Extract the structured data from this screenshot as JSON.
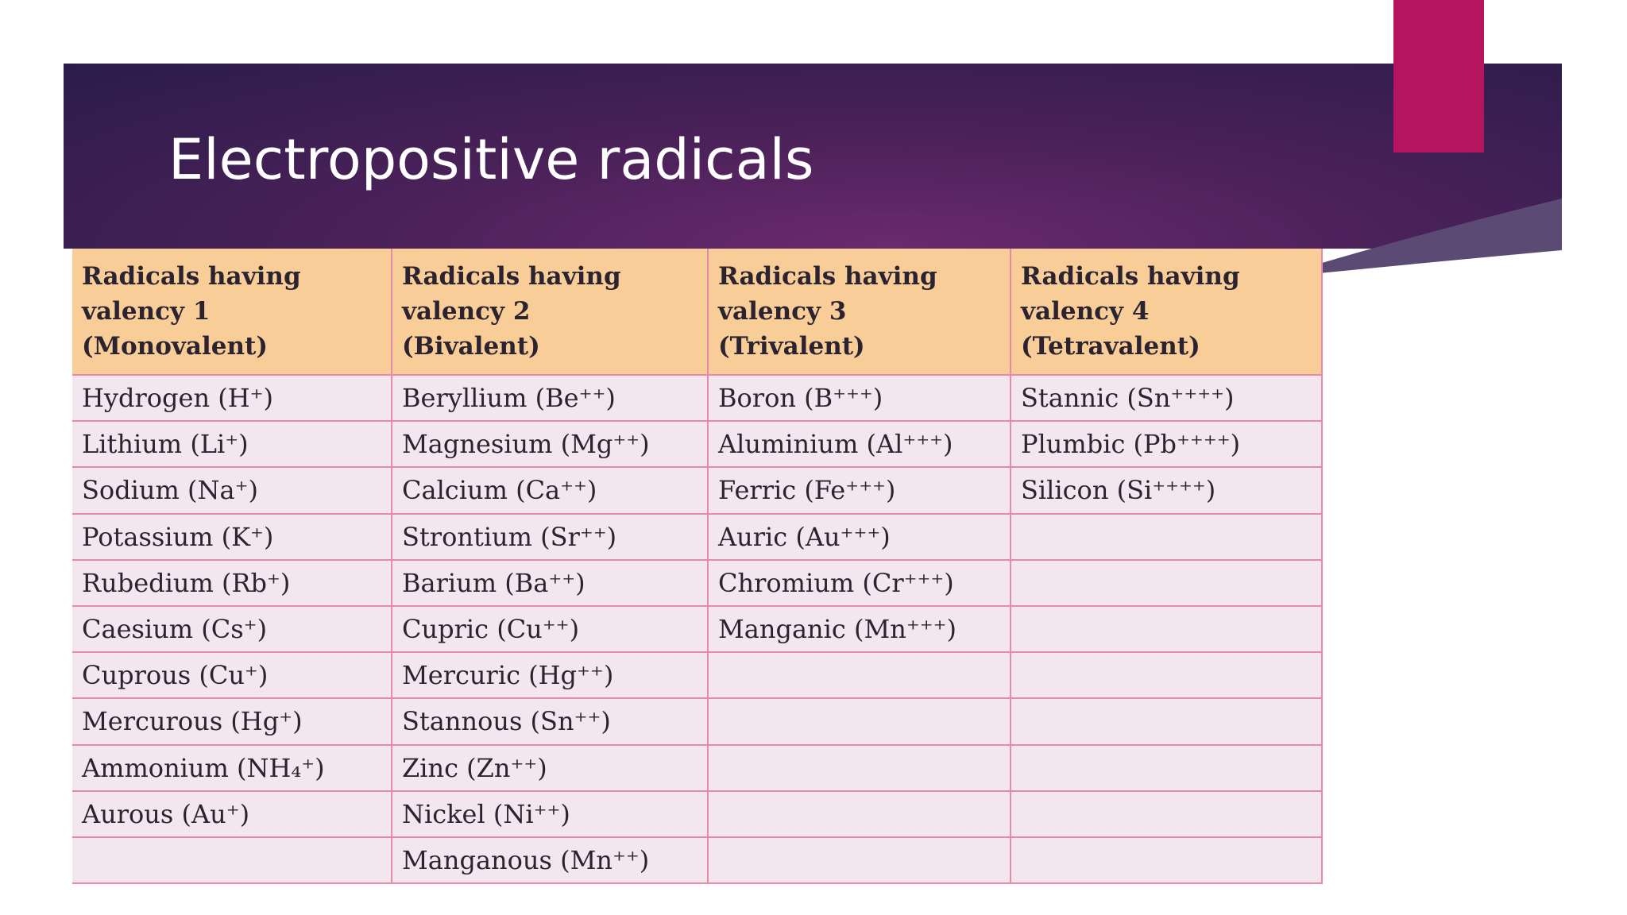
{
  "slide": {
    "title": "Electropositive radicals"
  },
  "table": {
    "columns": [
      {
        "header": [
          "Radicals having",
          "valency 1",
          "(Monovalent)"
        ],
        "items": [
          "Hydrogen (H⁺)",
          "Lithium (Li⁺)",
          "Sodium (Na⁺)",
          "Potassium (K⁺)",
          "Rubedium (Rb⁺)",
          "Caesium (Cs⁺)",
          "Cuprous (Cu⁺)",
          "Mercurous (Hg⁺)",
          "Ammonium (NH₄⁺)",
          "Aurous (Au⁺)"
        ]
      },
      {
        "header": [
          "Radicals having",
          "valency 2",
          "(Bivalent)"
        ],
        "items": [
          "Beryllium (Be⁺⁺)",
          "Magnesium (Mg⁺⁺)",
          "Calcium (Ca⁺⁺)",
          "Strontium (Sr⁺⁺)",
          "Barium (Ba⁺⁺)",
          "Cupric (Cu⁺⁺)",
          "Mercuric (Hg⁺⁺)",
          "Stannous (Sn⁺⁺)",
          "Zinc (Zn⁺⁺)",
          "Nickel (Ni⁺⁺)",
          "Manganous (Mn⁺⁺)"
        ]
      },
      {
        "header": [
          "Radicals having",
          "valency 3",
          "(Trivalent)"
        ],
        "items": [
          "Boron (B⁺⁺⁺)",
          "Aluminium (Al⁺⁺⁺)",
          "Ferric (Fe⁺⁺⁺)",
          "Auric (Au⁺⁺⁺)",
          "Chromium (Cr⁺⁺⁺)",
          "Manganic (Mn⁺⁺⁺)"
        ]
      },
      {
        "header": [
          "Radicals having",
          "valency 4",
          "(Tetravalent)"
        ],
        "items": [
          "Stannic (Sn⁺⁺⁺⁺)",
          "Plumbic (Pb⁺⁺⁺⁺)",
          "Silicon (Si⁺⁺⁺⁺)"
        ]
      }
    ]
  }
}
